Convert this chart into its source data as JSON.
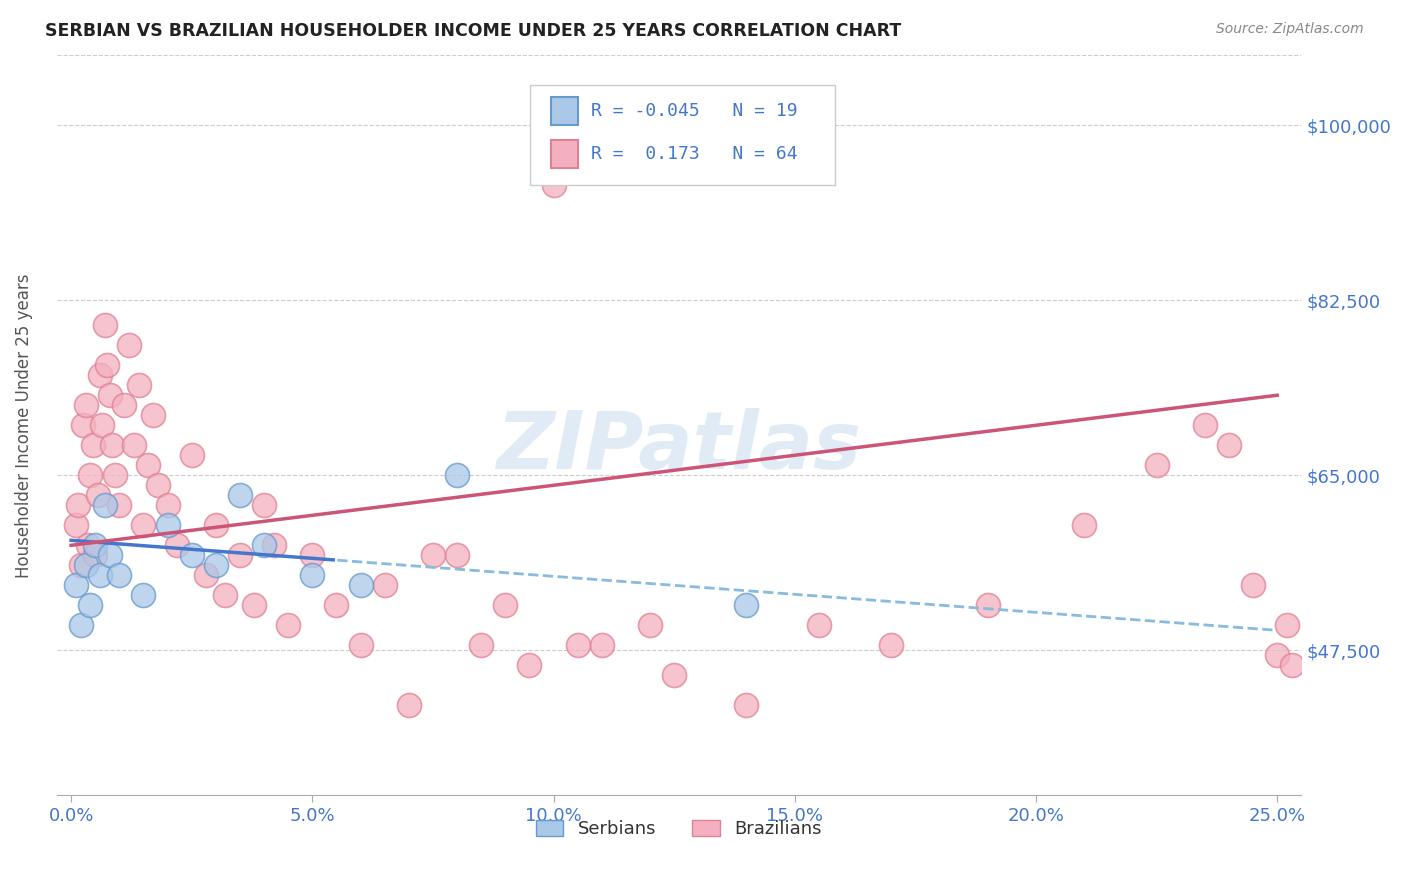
{
  "title": "SERBIAN VS BRAZILIAN HOUSEHOLDER INCOME UNDER 25 YEARS CORRELATION CHART",
  "source": "Source: ZipAtlas.com",
  "xlabel_ticks": [
    "0.0%",
    "5.0%",
    "10.0%",
    "15.0%",
    "20.0%",
    "25.0%"
  ],
  "xlabel_vals": [
    0.0,
    5.0,
    10.0,
    15.0,
    20.0,
    25.0
  ],
  "ylabel_ticks": [
    "$47,500",
    "$65,000",
    "$82,500",
    "$100,000"
  ],
  "ylabel_vals": [
    47500,
    65000,
    82500,
    100000
  ],
  "ymin": 33000,
  "ymax": 107000,
  "xmin": -0.3,
  "xmax": 25.5,
  "ylabel": "Householder Income Under 25 years",
  "r_serbian": -0.045,
  "n_serbian": 19,
  "r_brazilian": 0.173,
  "n_brazilian": 64,
  "serbian_color": "#aac8e8",
  "brazilian_color": "#f4b0c0",
  "serbian_edge": "#6699cc",
  "brazilian_edge": "#e08090",
  "watermark": "ZIPatlas",
  "serbian_points_x": [
    0.1,
    0.2,
    0.3,
    0.4,
    0.5,
    0.6,
    0.7,
    0.8,
    1.0,
    1.5,
    2.0,
    2.5,
    3.0,
    3.5,
    4.0,
    5.0,
    6.0,
    8.0,
    14.0
  ],
  "serbian_points_y": [
    54000,
    50000,
    56000,
    52000,
    58000,
    55000,
    62000,
    57000,
    55000,
    53000,
    60000,
    57000,
    56000,
    63000,
    58000,
    55000,
    54000,
    65000,
    52000
  ],
  "brazilian_points_x": [
    0.1,
    0.15,
    0.2,
    0.25,
    0.3,
    0.35,
    0.4,
    0.45,
    0.5,
    0.55,
    0.6,
    0.65,
    0.7,
    0.75,
    0.8,
    0.85,
    0.9,
    1.0,
    1.1,
    1.2,
    1.3,
    1.4,
    1.5,
    1.6,
    1.7,
    1.8,
    2.0,
    2.2,
    2.5,
    2.8,
    3.0,
    3.2,
    3.5,
    3.8,
    4.0,
    4.2,
    4.5,
    5.0,
    5.5,
    6.0,
    6.5,
    7.0,
    8.0,
    9.0,
    10.0,
    11.0,
    12.5,
    14.0,
    15.5,
    17.0,
    19.0,
    21.0,
    22.5,
    23.5,
    24.0,
    24.5,
    25.0,
    25.2,
    25.3,
    10.5,
    12.0,
    7.5,
    8.5,
    9.5
  ],
  "brazilian_points_y": [
    60000,
    62000,
    56000,
    70000,
    72000,
    58000,
    65000,
    68000,
    57000,
    63000,
    75000,
    70000,
    80000,
    76000,
    73000,
    68000,
    65000,
    62000,
    72000,
    78000,
    68000,
    74000,
    60000,
    66000,
    71000,
    64000,
    62000,
    58000,
    67000,
    55000,
    60000,
    53000,
    57000,
    52000,
    62000,
    58000,
    50000,
    57000,
    52000,
    48000,
    54000,
    42000,
    57000,
    52000,
    94000,
    48000,
    45000,
    42000,
    50000,
    48000,
    52000,
    60000,
    66000,
    70000,
    68000,
    54000,
    47000,
    50000,
    46000,
    48000,
    50000,
    57000,
    48000,
    46000
  ]
}
